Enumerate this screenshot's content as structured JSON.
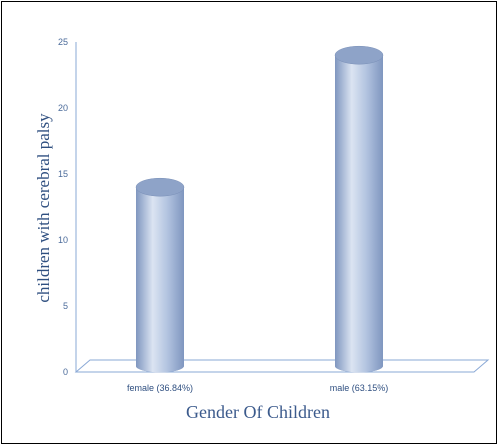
{
  "chart_data": {
    "type": "bar",
    "categories": [
      "female (36.84%)",
      "male (63.15%)"
    ],
    "values": [
      14,
      24
    ],
    "title": "",
    "xlabel": "Gender Of Children",
    "ylabel": "children with cerebral palsy",
    "ylim": [
      0,
      25
    ],
    "yticks": [
      0,
      5,
      10,
      15,
      20,
      25
    ],
    "grid": false,
    "bar_style": "3d-cylinder",
    "colors": {
      "bar_light": "#dbe4f2",
      "bar_mid": "#b3c4e0",
      "bar_dark": "#7f96bf",
      "bar_top": "#8ea3c8",
      "axis": "#8aa9d6",
      "tick_text": "#4a6a9a",
      "label_text": "#2f4f80"
    }
  }
}
